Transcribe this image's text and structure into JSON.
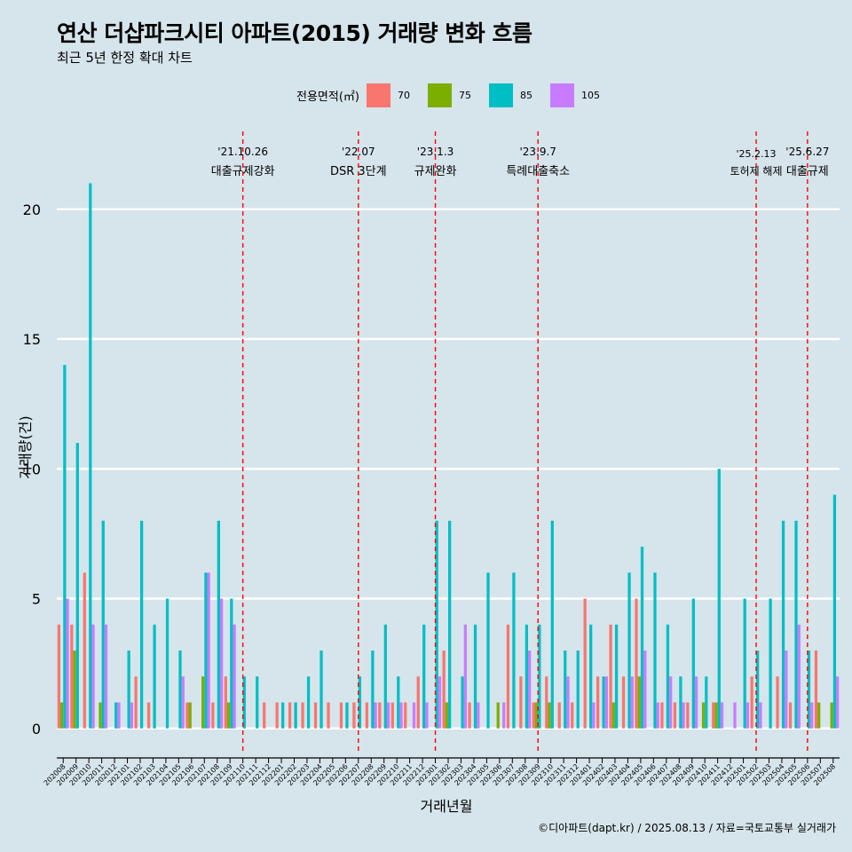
{
  "title": "연산 더샵파크시티 아파트(2015) 거래량 변화 흐름",
  "subtitle": "최근 5년 한정 확대 차트",
  "caption": "©디아파트(dapt.kr) / 2025.08.13 / 자료=국토교통부 실거래가",
  "legend": {
    "title": "전용면적(㎡)",
    "items": [
      {
        "label": "70",
        "color": "#f8766d"
      },
      {
        "label": "75",
        "color": "#7cae00"
      },
      {
        "label": "85",
        "color": "#00bfc4"
      },
      {
        "label": "105",
        "color": "#c77cff"
      }
    ]
  },
  "chart_data": {
    "type": "bar",
    "xlabel": "거래년월",
    "ylabel": "거래량(건)",
    "ylim": [
      -1,
      23
    ],
    "yticks": [
      0,
      5,
      10,
      15,
      20
    ],
    "categories": [
      "202008",
      "202009",
      "202010",
      "202011",
      "202012",
      "202101",
      "202102",
      "202103",
      "202104",
      "202105",
      "202106",
      "202107",
      "202108",
      "202109",
      "202110",
      "202111",
      "202112",
      "202201",
      "202202",
      "202203",
      "202204",
      "202205",
      "202206",
      "202207",
      "202208",
      "202209",
      "202210",
      "202211",
      "202212",
      "202301",
      "202302",
      "202303",
      "202304",
      "202305",
      "202306",
      "202307",
      "202308",
      "202309",
      "202310",
      "202311",
      "202312",
      "202401",
      "202402",
      "202403",
      "202404",
      "202405",
      "202406",
      "202407",
      "202408",
      "202409",
      "202410",
      "202411",
      "202412",
      "202501",
      "202502",
      "202503",
      "202504",
      "202505",
      "202506",
      "202507",
      "202508"
    ],
    "series": [
      {
        "name": "70",
        "values": [
          4,
          4,
          6,
          0,
          0,
          0,
          2,
          1,
          0,
          0,
          1,
          0,
          1,
          2,
          0,
          0,
          1,
          1,
          1,
          1,
          1,
          1,
          1,
          1,
          1,
          1,
          1,
          1,
          2,
          0,
          3,
          0,
          1,
          0,
          0,
          4,
          2,
          1,
          2,
          1,
          1,
          5,
          2,
          4,
          2,
          5,
          0,
          1,
          1,
          1,
          0,
          1,
          0,
          0,
          2,
          0,
          2,
          1,
          0,
          3,
          0
        ]
      },
      {
        "name": "75",
        "values": [
          1,
          3,
          0,
          1,
          0,
          0,
          0,
          0,
          0,
          0,
          1,
          2,
          0,
          1,
          0,
          0,
          0,
          0,
          0,
          0,
          0,
          0,
          0,
          0,
          0,
          0,
          0,
          0,
          0,
          0,
          1,
          0,
          0,
          0,
          1,
          0,
          0,
          1,
          1,
          0,
          0,
          0,
          0,
          1,
          0,
          2,
          0,
          0,
          0,
          0,
          1,
          1,
          0,
          0,
          0,
          0,
          0,
          0,
          0,
          1,
          1
        ]
      },
      {
        "name": "85",
        "values": [
          14,
          11,
          21,
          8,
          1,
          3,
          8,
          4,
          5,
          3,
          0,
          6,
          8,
          5,
          2,
          2,
          0,
          1,
          1,
          2,
          3,
          0,
          1,
          2,
          3,
          4,
          2,
          0,
          4,
          8,
          8,
          2,
          4,
          6,
          0,
          6,
          4,
          4,
          8,
          3,
          3,
          4,
          2,
          4,
          6,
          7,
          6,
          4,
          2,
          5,
          2,
          10,
          0,
          5,
          3,
          5,
          8,
          8,
          3,
          0,
          9
        ]
      },
      {
        "name": "105",
        "values": [
          5,
          0,
          4,
          4,
          1,
          1,
          0,
          0,
          0,
          2,
          0,
          6,
          5,
          4,
          0,
          0,
          0,
          0,
          0,
          0,
          0,
          0,
          0,
          0,
          1,
          1,
          1,
          1,
          1,
          2,
          0,
          4,
          1,
          0,
          1,
          0,
          3,
          0,
          0,
          2,
          0,
          1,
          2,
          0,
          2,
          3,
          1,
          2,
          1,
          2,
          0,
          1,
          1,
          1,
          1,
          0,
          3,
          4,
          1,
          0,
          2
        ]
      }
    ],
    "annotations": [
      {
        "date": "'21.10.26",
        "label": "대출규제강화",
        "at": "202110"
      },
      {
        "date": "'22.07",
        "label": "DSR 3단계",
        "at": "202207"
      },
      {
        "date": "'23.1.3",
        "label": "규제완화",
        "at": "202301"
      },
      {
        "date": "'23.9.7",
        "label": "특례대출축소",
        "at": "202309"
      },
      {
        "date": "'25.2.13",
        "label": "토허제 해제",
        "at": "202502"
      },
      {
        "date": "'25.6.27",
        "label": "대출규제",
        "at": "202506"
      }
    ],
    "grid": true,
    "legend_position": "top"
  }
}
